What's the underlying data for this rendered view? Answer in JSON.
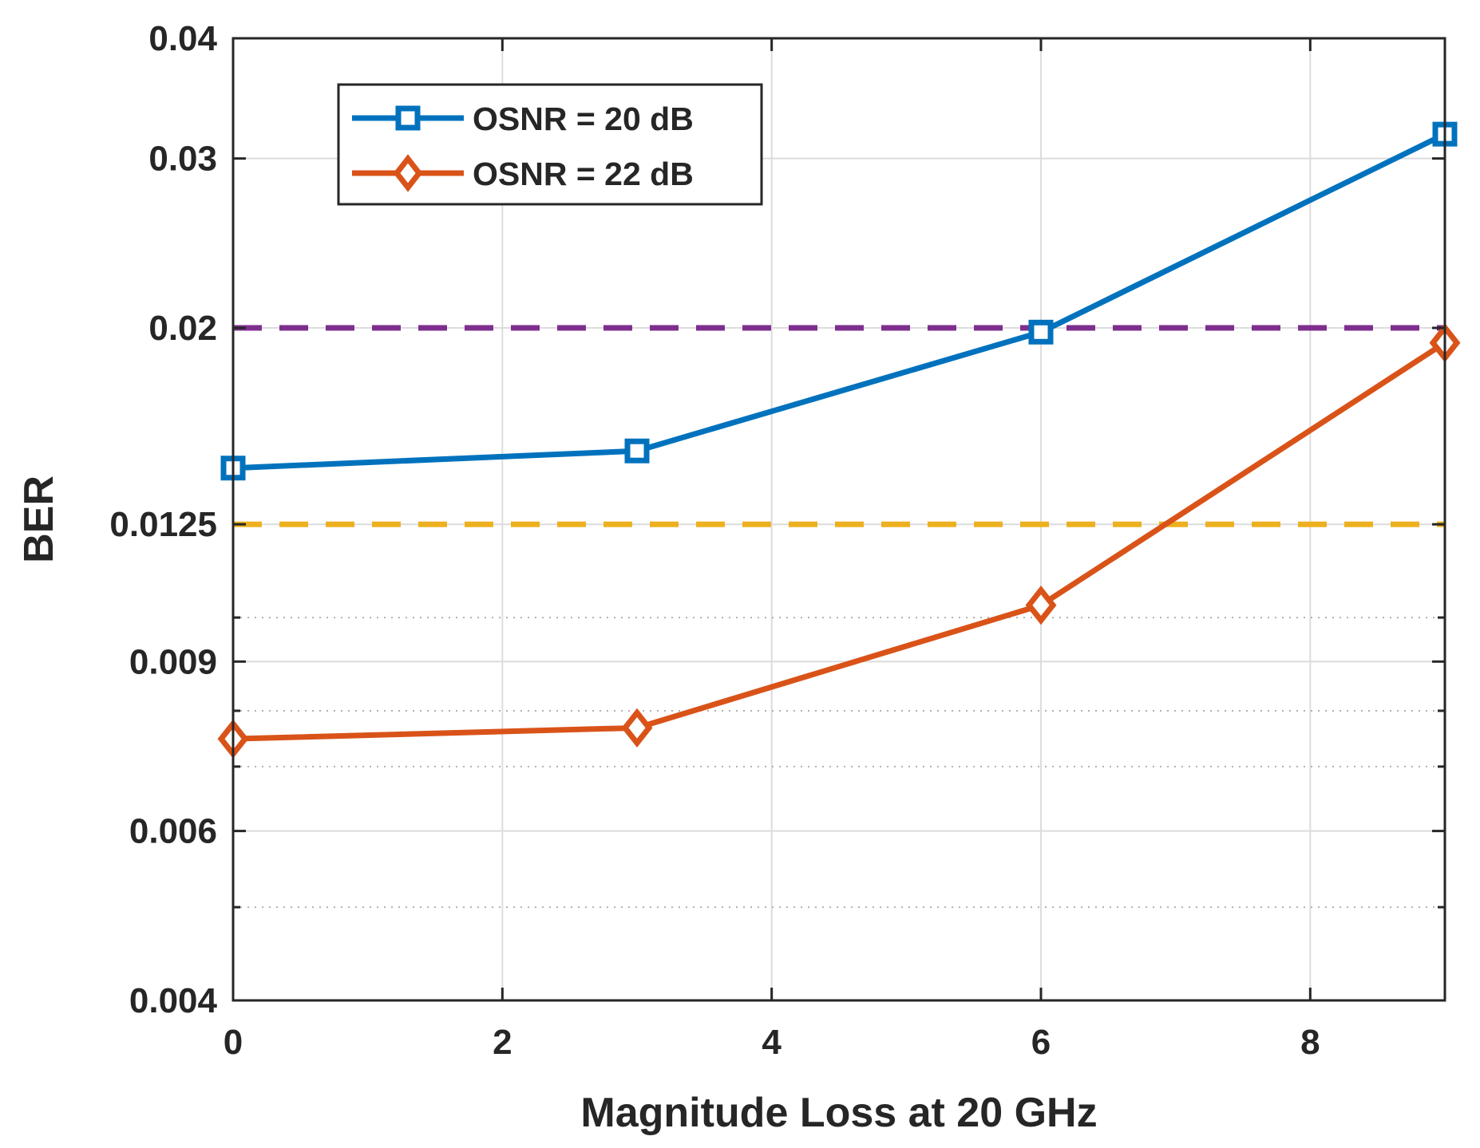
{
  "chart_data": {
    "type": "line",
    "title": "",
    "xlabel": "Magnitude Loss at 20 GHz",
    "ylabel": "BER",
    "xlim": [
      0,
      9
    ],
    "ylim": [
      0.004,
      0.04
    ],
    "yscale": "log",
    "grid": true,
    "legend_position": "top-left",
    "xticks": [
      0,
      2,
      4,
      6,
      8
    ],
    "xtick_labels": [
      "0",
      "2",
      "4",
      "6",
      "8"
    ],
    "yticks": [
      0.004,
      0.006,
      0.009,
      0.0125,
      0.02,
      0.03,
      0.04
    ],
    "ytick_labels": [
      "0.004",
      "0.006",
      "0.009",
      "0.0125",
      "0.02",
      "0.03",
      "0.04"
    ],
    "minor_yticks": [
      0.005,
      0.007,
      0.008,
      0.01
    ],
    "series": [
      {
        "name": "OSNR = 20 dB",
        "color": "#0072BD",
        "marker": "square",
        "x": [
          0,
          3,
          6,
          9
        ],
        "y": [
          0.0143,
          0.0149,
          0.0198,
          0.0318
        ]
      },
      {
        "name": "OSNR = 22 dB",
        "color": "#D95319",
        "marker": "diamond",
        "x": [
          0,
          3,
          6,
          9
        ],
        "y": [
          0.00748,
          0.00768,
          0.0103,
          0.0193
        ]
      }
    ],
    "reference_lines": [
      {
        "name": "threshold-0.02",
        "y": 0.02,
        "color": "#7E2F8E",
        "style": "dashed"
      },
      {
        "name": "threshold-0.0125",
        "y": 0.0125,
        "color": "#EDB120",
        "style": "dashed"
      }
    ]
  }
}
